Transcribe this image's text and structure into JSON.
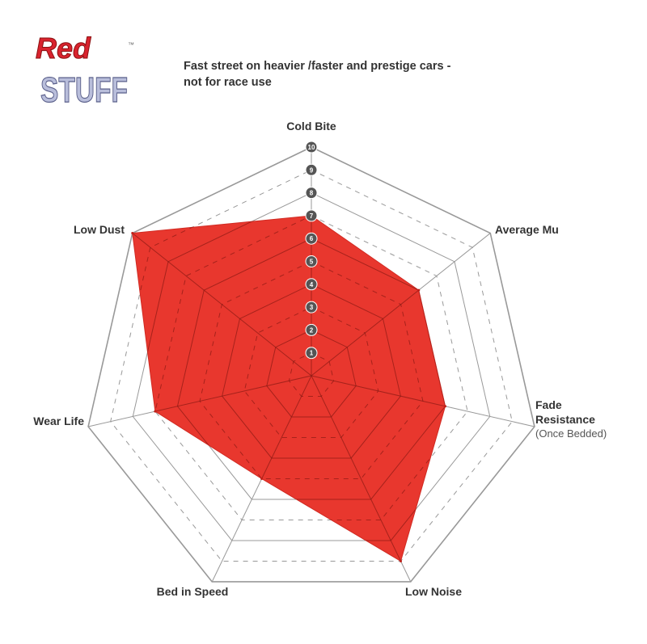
{
  "logo": {
    "line1": "Red",
    "line2": "STUFF",
    "tm": "™"
  },
  "subtitle": {
    "line1": "Fast street on heavier /faster and prestige cars -",
    "line2": "not for race use"
  },
  "chart_data": {
    "type": "radar",
    "axes": [
      {
        "label": "Cold Bite",
        "note": ""
      },
      {
        "label": "Average Mu",
        "note": ""
      },
      {
        "label": "Fade Resistance",
        "note": "(Once Bedded)"
      },
      {
        "label": "Low Noise",
        "note": ""
      },
      {
        "label": "Bed in Speed",
        "note": ""
      },
      {
        "label": "Wear Life",
        "note": ""
      },
      {
        "label": "Low Dust",
        "note": ""
      }
    ],
    "values": [
      7,
      6,
      6,
      9,
      5,
      7,
      10
    ],
    "range": [
      0,
      10
    ],
    "ticks": [
      "1",
      "2",
      "3",
      "4",
      "5",
      "6",
      "7",
      "8",
      "9",
      "10"
    ],
    "grid": true,
    "colors": {
      "fill": "#e8372e",
      "grid": "#999999",
      "tick_badge": "#555555"
    }
  }
}
